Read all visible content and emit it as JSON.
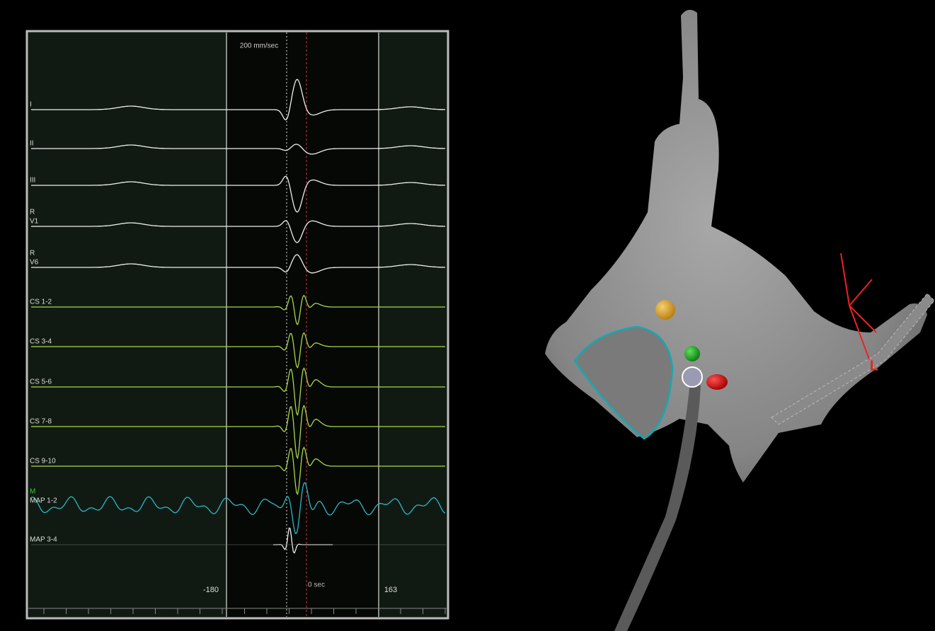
{
  "speed_label": "200 mm/sec",
  "channels": [
    {
      "label": "I"
    },
    {
      "label": "II"
    },
    {
      "label": "III"
    },
    {
      "prefix": "R",
      "label": "V1"
    },
    {
      "prefix": "R",
      "label": "V6"
    },
    {
      "label": "CS 1-2"
    },
    {
      "label": "CS 3-4"
    },
    {
      "label": "CS 5-6"
    },
    {
      "label": "CS 7-8"
    },
    {
      "label": "CS 9-10"
    },
    {
      "prefix": "M",
      "label": "MAP 1-2"
    },
    {
      "label": "MAP 3-4"
    }
  ],
  "window_start": -180,
  "zero_label": "0 sec",
  "window_end": 163,
  "orientation_label": "L"
}
